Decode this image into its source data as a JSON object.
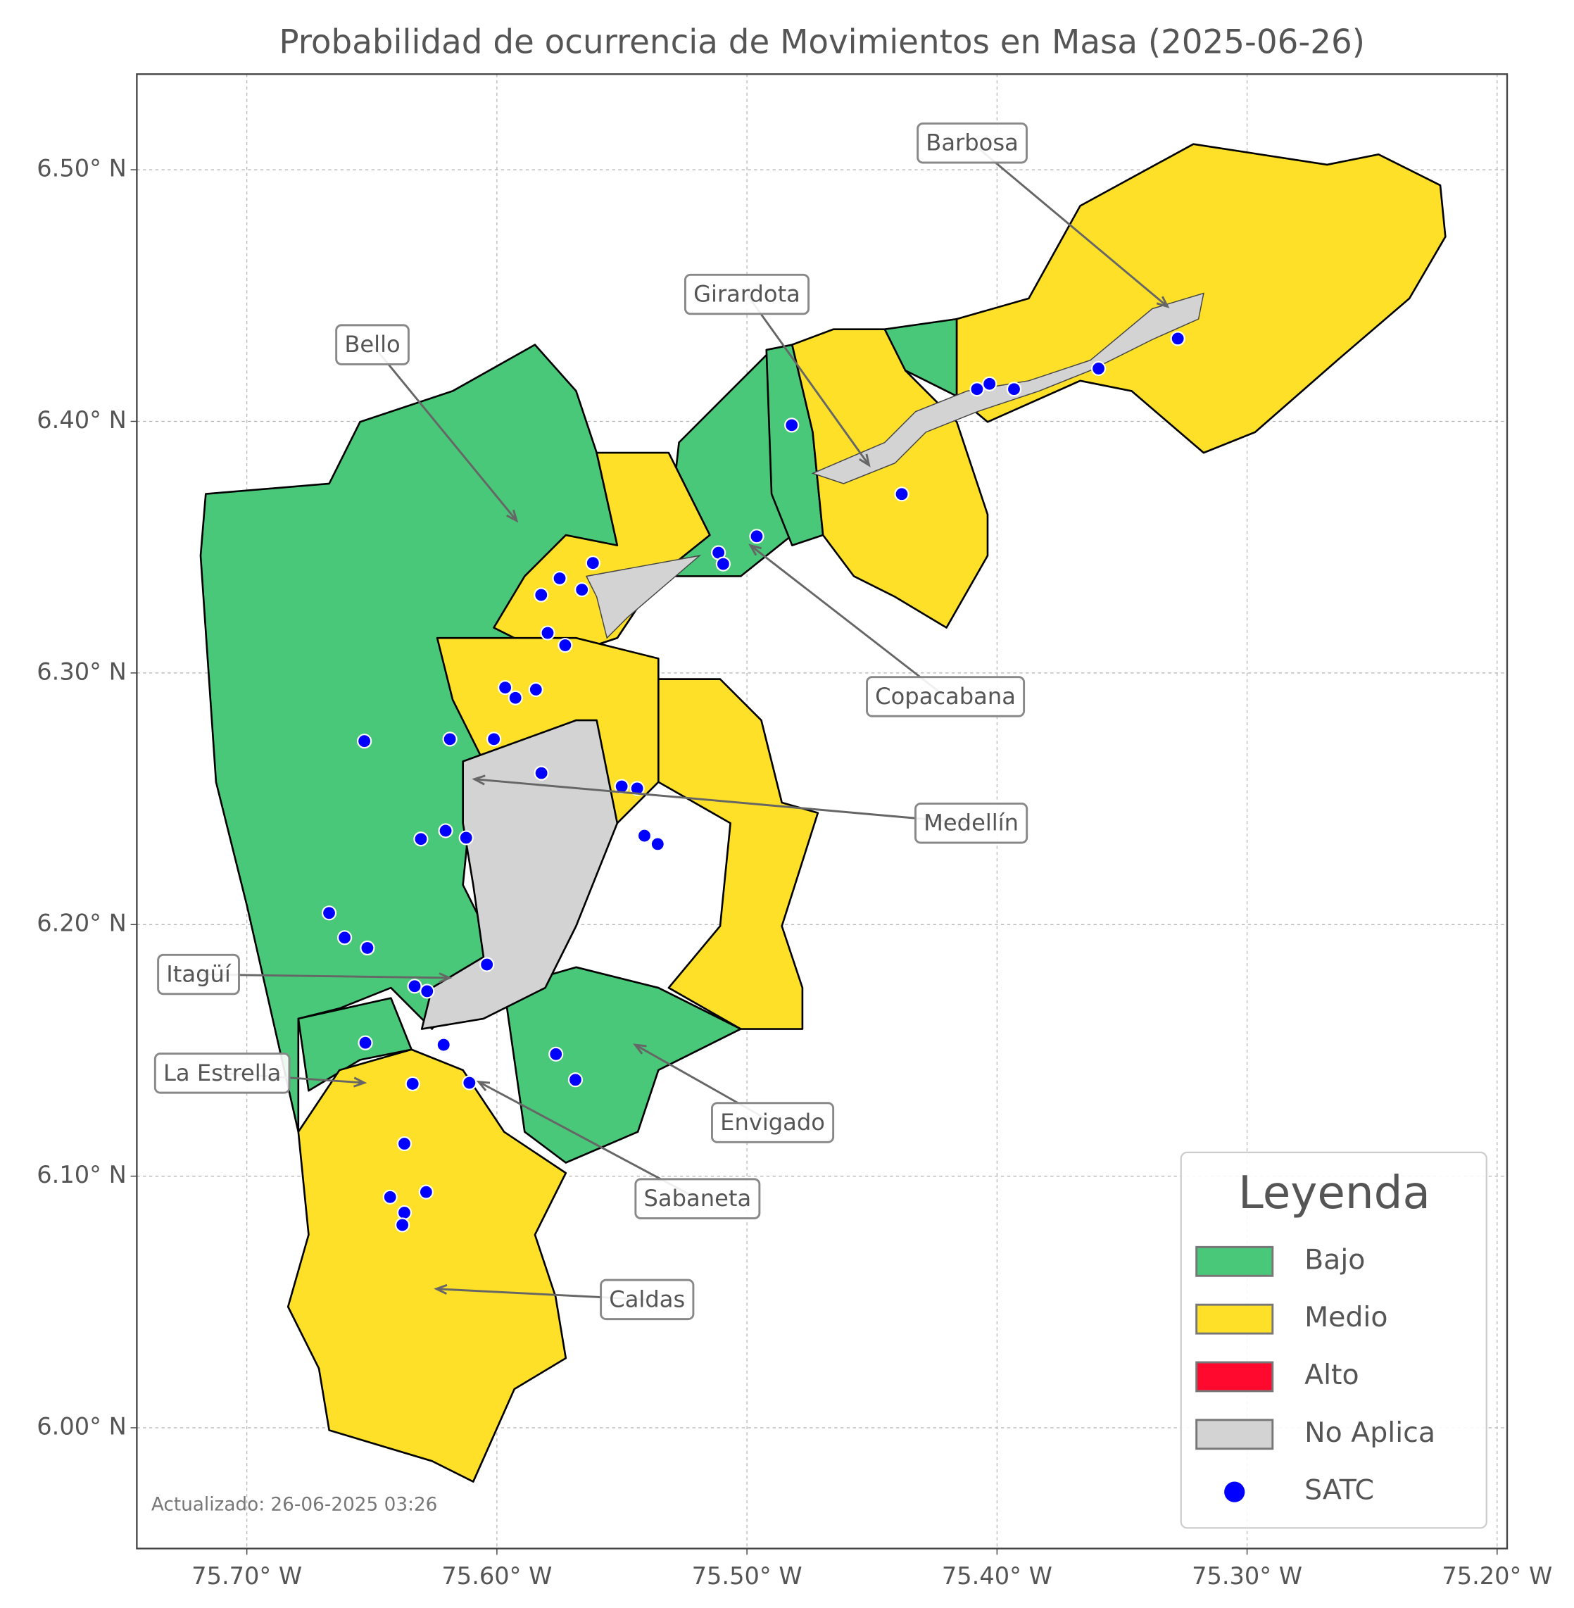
{
  "chart_data": {
    "type": "map",
    "title": "Probabilidad de ocurrencia de Movimientos en Masa (2025-06-26)",
    "footnote": "Actualizado: 26-06-2025 03:26",
    "xlim": [
      -75.744,
      -75.196
    ],
    "ylim": [
      5.952,
      6.538
    ],
    "xticks": [
      {
        "value": -75.7,
        "label": "75.70° W"
      },
      {
        "value": -75.6,
        "label": "75.60° W"
      },
      {
        "value": -75.5,
        "label": "75.50° W"
      },
      {
        "value": -75.4,
        "label": "75.40° W"
      },
      {
        "value": -75.3,
        "label": "75.30° W"
      },
      {
        "value": -75.2,
        "label": "75.20° W"
      }
    ],
    "yticks": [
      {
        "value": 6.0,
        "label": "6.00° N"
      },
      {
        "value": 6.1,
        "label": "6.10° N"
      },
      {
        "value": 6.2,
        "label": "6.20° N"
      },
      {
        "value": 6.3,
        "label": "6.30° N"
      },
      {
        "value": 6.4,
        "label": "6.40° N"
      },
      {
        "value": 6.5,
        "label": "6.50° N"
      }
    ],
    "grid": true,
    "legend": {
      "title": "Leyenda",
      "position": "lower right",
      "items": [
        {
          "name": "Bajo",
          "color": "#48c878"
        },
        {
          "name": "Medio",
          "color": "#fde027"
        },
        {
          "name": "Alto",
          "color": "#ff0a2e"
        },
        {
          "name": "No Aplica",
          "color": "#d3d3d3"
        }
      ]
    },
    "series": [
      {
        "name": "SATC",
        "color": "#0000ff",
        "x": [
          -75.4821,
          -75.408,
          -75.403,
          -75.3932,
          -75.3594,
          -75.3277,
          -75.4381,
          -75.4961,
          -75.5114,
          -75.5095,
          -75.5616,
          -75.5749,
          -75.566,
          -75.5823,
          -75.5797,
          -75.5727,
          -75.5967,
          -75.5926,
          -75.5844,
          -75.653,
          -75.6188,
          -75.6012,
          -75.5822,
          -75.5501,
          -75.5439,
          -75.541,
          -75.5357,
          -75.6304,
          -75.6205,
          -75.6123,
          -75.6671,
          -75.6609,
          -75.6518,
          -75.604,
          -75.6329,
          -75.6279,
          -75.6526,
          -75.6213,
          -75.5764,
          -75.5686,
          -75.6337,
          -75.611,
          -75.637,
          -75.6427,
          -75.6283,
          -75.637,
          -75.6378
        ],
        "values": [
          6.3985,
          6.4128,
          6.4149,
          6.4128,
          6.421,
          6.4329,
          6.3711,
          6.3543,
          6.3478,
          6.3433,
          6.3437,
          6.3376,
          6.3331,
          6.331,
          6.3159,
          6.311,
          6.2942,
          6.2901,
          6.2934,
          6.2729,
          6.2737,
          6.2737,
          6.2602,
          6.2549,
          6.2541,
          6.2353,
          6.232,
          6.234,
          6.2373,
          6.2345,
          6.2046,
          6.1948,
          6.1907,
          6.1841,
          6.1755,
          6.1735,
          6.153,
          6.1522,
          6.1485,
          6.1383,
          6.1367,
          6.1371,
          6.1129,
          6.0917,
          6.0937,
          6.0855,
          6.0806
        ]
      }
    ],
    "annotations": [
      {
        "label": "Barbosa",
        "x": -75.3318,
        "y": 6.4456
      },
      {
        "label": "Girardota",
        "x": -75.4512,
        "y": 6.3826
      },
      {
        "label": "Bello",
        "x": -75.5921,
        "y": 6.3605
      },
      {
        "label": "Copacabana",
        "x": -75.4986,
        "y": 6.3507
      },
      {
        "label": "Medellín",
        "x": -75.609,
        "y": 6.2578
      },
      {
        "label": "Itagüí",
        "x": -75.6189,
        "y": 6.1788
      },
      {
        "label": "La Estrella",
        "x": -75.653,
        "y": 6.1371
      },
      {
        "label": "Envigado",
        "x": -75.5447,
        "y": 6.1522
      },
      {
        "label": "Sabaneta",
        "x": -75.6073,
        "y": 6.1375
      },
      {
        "label": "Caldas",
        "x": -75.6242,
        "y": 6.0552
      }
    ]
  }
}
